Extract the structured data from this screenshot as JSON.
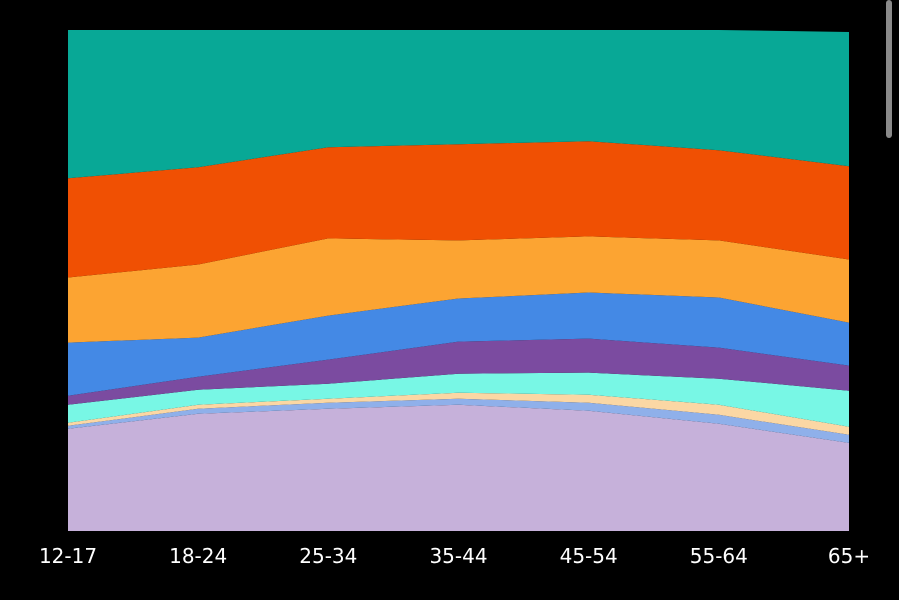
{
  "chart_data": {
    "type": "area",
    "stacked": true,
    "normalized": true,
    "categories": [
      "12-17",
      "18-24",
      "25-34",
      "35-44",
      "45-54",
      "55-64",
      "65+"
    ],
    "ylim": [
      0,
      100
    ],
    "grid": false,
    "legend": "none",
    "series": [
      {
        "color": "#c6b1da",
        "values": [
          20.4,
          23.4,
          24.4,
          25.2,
          24.0,
          21.4,
          17.6
        ]
      },
      {
        "color": "#8fb0ea",
        "values": [
          0.6,
          1.0,
          1.2,
          1.2,
          1.6,
          1.8,
          1.6
        ]
      },
      {
        "color": "#fbd7a4",
        "values": [
          0.6,
          0.8,
          0.8,
          1.2,
          1.6,
          2.0,
          1.6
        ]
      },
      {
        "color": "#78f7e5",
        "values": [
          3.6,
          3.0,
          3.0,
          3.8,
          4.4,
          5.2,
          7.2
        ]
      },
      {
        "color": "#7b4ba0",
        "values": [
          1.8,
          2.6,
          4.8,
          6.4,
          6.8,
          6.2,
          5.0
        ]
      },
      {
        "color": "#4489e5",
        "values": [
          10.6,
          7.8,
          8.8,
          8.6,
          9.2,
          10.0,
          8.6
        ]
      },
      {
        "color": "#fca432",
        "values": [
          13.0,
          14.6,
          15.4,
          11.6,
          11.2,
          11.4,
          12.6
        ]
      },
      {
        "color": "#f05003",
        "values": [
          19.8,
          19.4,
          18.2,
          19.2,
          19.0,
          18.0,
          18.6
        ]
      },
      {
        "color": "#08a896",
        "values": [
          29.6,
          27.4,
          23.4,
          22.8,
          22.2,
          24.0,
          26.8
        ]
      }
    ]
  }
}
